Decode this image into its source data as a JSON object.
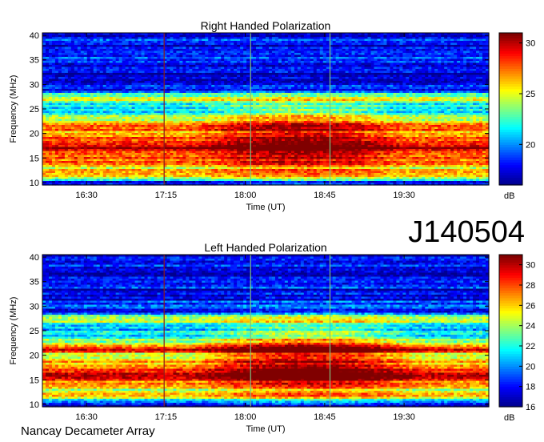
{
  "event_id": "J140504",
  "footer": "Nancay Decameter Array",
  "colors": {
    "scale": [
      "#00008f",
      "#0000ff",
      "#0080ff",
      "#00ffff",
      "#80ff80",
      "#ffff00",
      "#ff8000",
      "#ff0000",
      "#800000"
    ]
  },
  "chart_data": [
    {
      "type": "heatmap",
      "title": "Right Handed Polarization",
      "xlabel": "Time (UT)",
      "ylabel": "Frequency (MHz)",
      "x_ticks": [
        "16:30",
        "17:15",
        "18:00",
        "18:45",
        "19:30"
      ],
      "x_tick_minutes": [
        990,
        1035,
        1080,
        1125,
        1170
      ],
      "xlim_minutes": [
        965,
        1218
      ],
      "y_ticks": [
        10,
        15,
        20,
        25,
        30,
        35,
        40
      ],
      "ylim": [
        9.5,
        40.5
      ],
      "colorbar": {
        "unit": "dB",
        "ticks": [
          20,
          25,
          30
        ],
        "range": [
          16,
          31
        ]
      },
      "profile_db": [
        [
          10,
          18
        ],
        [
          11,
          24
        ],
        [
          12,
          27
        ],
        [
          13,
          25
        ],
        [
          14,
          29
        ],
        [
          15,
          28
        ],
        [
          16,
          29
        ],
        [
          17,
          30
        ],
        [
          18,
          29
        ],
        [
          19,
          28
        ],
        [
          20,
          26
        ],
        [
          21,
          29
        ],
        [
          22,
          26
        ],
        [
          23,
          24
        ],
        [
          24,
          22
        ],
        [
          25,
          21
        ],
        [
          26,
          21
        ],
        [
          27,
          27
        ],
        [
          28,
          22
        ],
        [
          29,
          17
        ],
        [
          30,
          18
        ],
        [
          31,
          17
        ],
        [
          33,
          17
        ],
        [
          35,
          19
        ],
        [
          37,
          17
        ],
        [
          39,
          18
        ],
        [
          40,
          17
        ]
      ],
      "burst_db": [
        [
          10,
          1
        ],
        [
          18,
          3
        ],
        [
          20,
          3
        ],
        [
          22,
          3
        ],
        [
          24,
          2.5
        ],
        [
          26,
          1.5
        ],
        [
          28,
          0.5
        ],
        [
          30,
          0
        ],
        [
          40,
          0
        ]
      ],
      "burst_window_minutes": [
        1050,
        1170
      ]
    },
    {
      "type": "heatmap",
      "title": "Left Handed Polarization",
      "xlabel": "Time (UT)",
      "ylabel": "Frequency (MHz)",
      "x_ticks": [
        "16:30",
        "17:15",
        "18:00",
        "18:45",
        "19:30"
      ],
      "x_tick_minutes": [
        990,
        1035,
        1080,
        1125,
        1170
      ],
      "xlim_minutes": [
        965,
        1218
      ],
      "y_ticks": [
        10,
        15,
        20,
        25,
        30,
        35,
        40
      ],
      "ylim": [
        9.5,
        40.5
      ],
      "colorbar": {
        "unit": "dB",
        "ticks": [
          16,
          18,
          20,
          22,
          24,
          26,
          28,
          30
        ],
        "range": [
          16,
          31
        ]
      },
      "profile_db": [
        [
          10,
          17
        ],
        [
          11,
          23
        ],
        [
          12,
          26
        ],
        [
          13,
          25
        ],
        [
          14,
          28
        ],
        [
          15,
          28
        ],
        [
          16,
          29
        ],
        [
          17,
          29
        ],
        [
          18,
          27
        ],
        [
          19,
          26
        ],
        [
          20,
          24
        ],
        [
          21,
          29
        ],
        [
          22,
          25
        ],
        [
          23,
          23
        ],
        [
          24,
          22
        ],
        [
          25,
          21
        ],
        [
          26,
          21
        ],
        [
          27,
          26
        ],
        [
          28,
          22
        ],
        [
          29,
          18
        ],
        [
          30,
          19
        ],
        [
          31,
          18
        ],
        [
          33,
          17
        ],
        [
          35,
          19
        ],
        [
          37,
          17
        ],
        [
          39,
          18
        ],
        [
          40,
          17
        ]
      ],
      "burst_db": [
        [
          10,
          1
        ],
        [
          18,
          4
        ],
        [
          20,
          4.5
        ],
        [
          22,
          4
        ],
        [
          24,
          3
        ],
        [
          26,
          2
        ],
        [
          28,
          1
        ],
        [
          30,
          0.5
        ],
        [
          40,
          0
        ]
      ],
      "burst_window_minutes": [
        1050,
        1180
      ]
    }
  ]
}
